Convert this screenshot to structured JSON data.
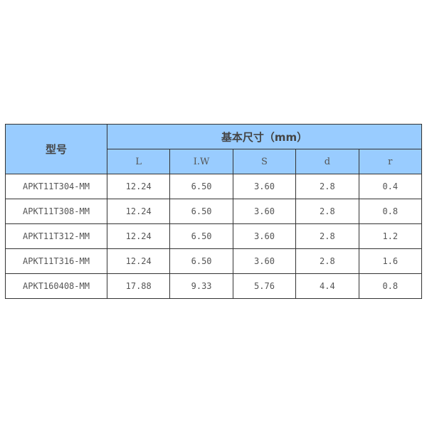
{
  "table": {
    "model_header": "型号",
    "group_header": "基本尺寸（mm）",
    "columns": [
      "L",
      "I.W",
      "S",
      "d",
      "r"
    ],
    "rows": [
      [
        "APKT11T304-MM",
        "12.24",
        "6.50",
        "3.60",
        "2.8",
        "0.4"
      ],
      [
        "APKT11T308-MM",
        "12.24",
        "6.50",
        "3.60",
        "2.8",
        "0.8"
      ],
      [
        "APKT11T312-MM",
        "12.24",
        "6.50",
        "3.60",
        "2.8",
        "1.2"
      ],
      [
        "APKT11T316-MM",
        "12.24",
        "6.50",
        "3.60",
        "2.8",
        "1.6"
      ],
      [
        "APKT160408-MM",
        "17.88",
        "9.33",
        "5.76",
        "4.4",
        "0.8"
      ]
    ]
  },
  "colors": {
    "header_bg": "#99ccff",
    "border": "#333333"
  }
}
